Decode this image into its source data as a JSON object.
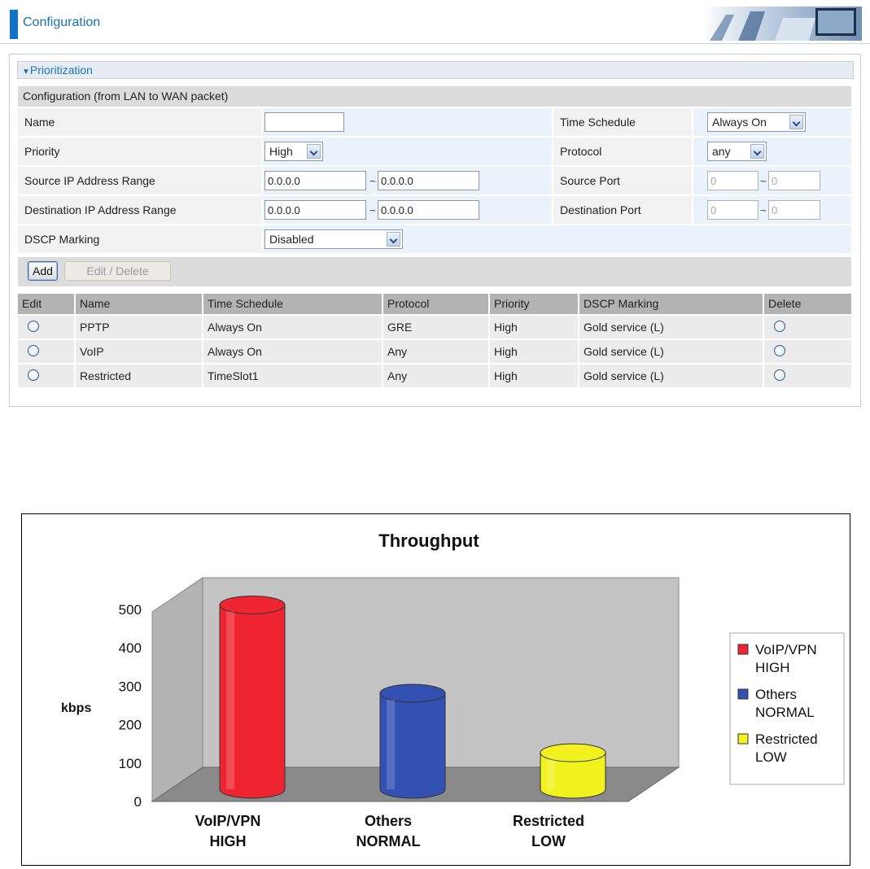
{
  "header": {
    "title": "Configuration"
  },
  "section": {
    "title": "Prioritization"
  },
  "config": {
    "subheading": "Configuration (from LAN to WAN packet)",
    "name_label": "Name",
    "name_value": "",
    "time_schedule_label": "Time Schedule",
    "time_schedule_value": "Always On",
    "priority_label": "Priority",
    "priority_value": "High",
    "protocol_label": "Protocol",
    "protocol_value": "any",
    "src_ip_label": "Source IP Address Range",
    "src_ip_start": "0.0.0.0",
    "src_ip_end": "0.0.0.0",
    "src_port_label": "Source Port",
    "src_port_start": "0",
    "src_port_end": "0",
    "dst_ip_label": "Destination IP Address Range",
    "dst_ip_start": "0.0.0.0",
    "dst_ip_end": "0.0.0.0",
    "dst_port_label": "Destination Port",
    "dst_port_start": "0",
    "dst_port_end": "0",
    "dscp_label": "DSCP Marking",
    "dscp_value": "Disabled",
    "range_separator": "~"
  },
  "buttons": {
    "add": "Add",
    "edit_delete": "Edit / Delete"
  },
  "table": {
    "headers": [
      "Edit",
      "Name",
      "Time Schedule",
      "Protocol",
      "Priority",
      "DSCP Marking",
      "Delete"
    ],
    "rows": [
      {
        "name": "PPTP",
        "schedule": "Always On",
        "protocol": "GRE",
        "priority": "High",
        "dscp": "Gold service (L)"
      },
      {
        "name": "VoIP",
        "schedule": "Always On",
        "protocol": "Any",
        "priority": "High",
        "dscp": "Gold service (L)"
      },
      {
        "name": "Restricted",
        "schedule": "TimeSlot1",
        "protocol": "Any",
        "priority": "High",
        "dscp": "Gold service (L)"
      }
    ]
  },
  "chart_data": {
    "type": "bar",
    "title": "Throughput",
    "ylabel": "kbps",
    "xlabel": "",
    "ylim": [
      0,
      500
    ],
    "yticks": [
      0,
      100,
      200,
      300,
      400,
      500
    ],
    "categories": [
      {
        "line1": "VoIP/VPN",
        "line2": "HIGH"
      },
      {
        "line1": "Others",
        "line2": "NORMAL"
      },
      {
        "line1": "Restricted",
        "line2": "LOW"
      }
    ],
    "values": [
      480,
      250,
      95
    ],
    "colors": [
      "#ee2430",
      "#3350b3",
      "#f2f21f"
    ],
    "legend": {
      "placement": "right",
      "entries": [
        {
          "line1": "VoIP/VPN",
          "line2": "HIGH",
          "color": "#ee2430"
        },
        {
          "line1": "Others",
          "line2": "NORMAL",
          "color": "#3350b3"
        },
        {
          "line1": "Restricted",
          "line2": "LOW",
          "color": "#f2f21f"
        }
      ]
    },
    "grid": false
  }
}
